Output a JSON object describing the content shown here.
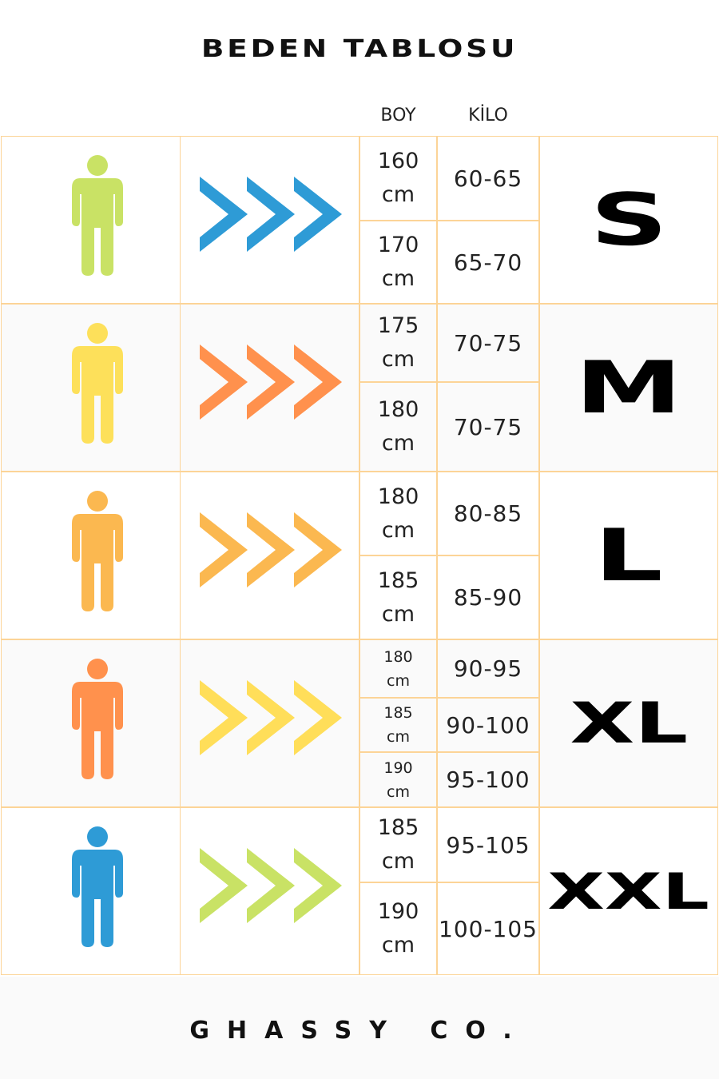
{
  "title": "BEDEN TABLOSU",
  "headers": {
    "height": "BOY",
    "weight": "KİLO"
  },
  "footer": "GHASSY CO.",
  "colors": {
    "border": "#fcd497"
  },
  "rows": [
    {
      "size": "S",
      "person_color": "#c9e265",
      "chevron_color": "#2e9bd6",
      "entries": [
        {
          "height": "160",
          "unit": "cm",
          "weight": "60-65"
        },
        {
          "height": "170",
          "unit": "cm",
          "weight": "65-70"
        }
      ]
    },
    {
      "size": "M",
      "person_color": "#fde05a",
      "chevron_color": "#ff914d",
      "entries": [
        {
          "height": "175",
          "unit": "cm",
          "weight": "70-75"
        },
        {
          "height": "180",
          "unit": "cm",
          "weight": "70-75"
        }
      ]
    },
    {
      "size": "L",
      "person_color": "#fbb850",
      "chevron_color": "#fbb850",
      "entries": [
        {
          "height": "180",
          "unit": "cm",
          "weight": "80-85"
        },
        {
          "height": "185",
          "unit": "cm",
          "weight": "85-90"
        }
      ]
    },
    {
      "size": "XL",
      "person_color": "#ff914d",
      "chevron_color": "#ffde59",
      "entries": [
        {
          "height": "180",
          "unit": "cm",
          "weight": "90-95"
        },
        {
          "height": "185",
          "unit": "cm",
          "weight": "90-100"
        },
        {
          "height": "190",
          "unit": "cm",
          "weight": "95-100"
        }
      ]
    },
    {
      "size": "XXL",
      "person_color": "#2e9bd6",
      "chevron_color": "#c9e265",
      "entries": [
        {
          "height": "185",
          "unit": "cm",
          "weight": "95-105"
        },
        {
          "height": "190",
          "unit": "cm",
          "weight": "100-105"
        }
      ]
    }
  ]
}
